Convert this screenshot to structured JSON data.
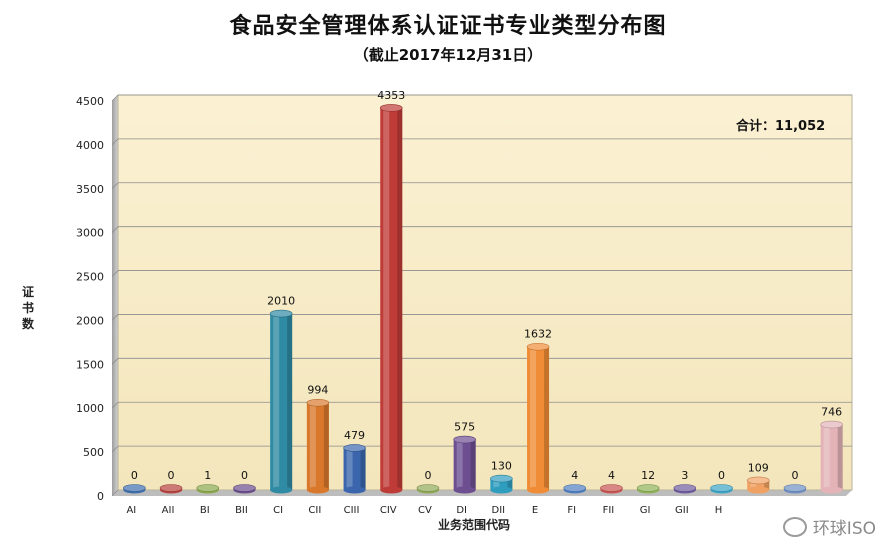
{
  "chart_data": {
    "type": "bar",
    "title": "食品安全管理体系认证证书专业类型分布图",
    "subtitle": "（截止2017年12月31日）",
    "xlabel": "业务范围代码",
    "ylabel": "证书数",
    "ylim": [
      0,
      4500
    ],
    "yticks": [
      0,
      500,
      1000,
      1500,
      2000,
      2500,
      3000,
      3500,
      4000,
      4500
    ],
    "grid": true,
    "annotation": "合计：11,052",
    "categories": [
      "AI",
      "AII",
      "BI",
      "BII",
      "CI",
      "CII",
      "CIII",
      "CIV",
      "CV",
      "DI",
      "DII",
      "E",
      "FI",
      "FII",
      "GI",
      "GII",
      "H",
      "",
      "",
      ""
    ],
    "values": [
      0,
      0,
      1,
      0,
      2010,
      994,
      479,
      4353,
      0,
      575,
      130,
      1632,
      4,
      4,
      12,
      3,
      0,
      109,
      0,
      746
    ],
    "colors": [
      "#3f6fae",
      "#b8413d",
      "#8aa84a",
      "#6a4d8c",
      "#2f8aa3",
      "#d9782b",
      "#3b66ad",
      "#bf3b38",
      "#8fa955",
      "#6c4e91",
      "#2f9dbe",
      "#f08c35",
      "#4f7fc0",
      "#c9544f",
      "#8fb255",
      "#6e5a9e",
      "#3aa5c6",
      "#f0a060",
      "#6f8fc5",
      "#e3b3b8"
    ]
  },
  "watermark": "环球ISO"
}
